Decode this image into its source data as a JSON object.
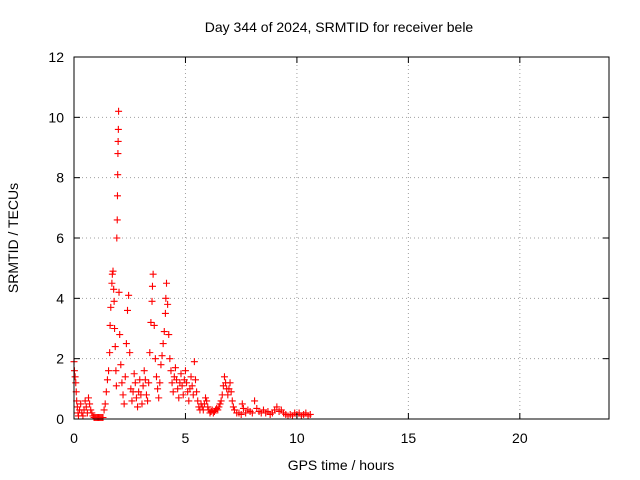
{
  "chart_data": {
    "type": "scatter",
    "title": "Day 344 of 2024, SRMTID for receiver bele",
    "xlabel": "GPS time / hours",
    "ylabel": "SRMTID / TECUs",
    "xlim": [
      0,
      24
    ],
    "ylim": [
      0,
      12
    ],
    "xticks": [
      0,
      5,
      10,
      15,
      20
    ],
    "yticks": [
      0,
      2,
      4,
      6,
      8,
      10,
      12
    ],
    "xtick_labels": [
      "0",
      "5",
      "10",
      "15",
      "20"
    ],
    "ytick_labels": [
      "0",
      "2",
      "4",
      "6",
      "8",
      "10",
      "12"
    ],
    "grid": true,
    "legend": "none",
    "marker": "plus",
    "color": "#ff0000",
    "series": [
      {
        "points": [
          [
            0.0,
            1.9
          ],
          [
            0.02,
            1.6
          ],
          [
            0.05,
            1.4
          ],
          [
            0.08,
            1.2
          ],
          [
            0.1,
            0.9
          ],
          [
            0.12,
            0.6
          ],
          [
            0.15,
            0.4
          ],
          [
            0.18,
            0.2
          ],
          [
            0.2,
            0.1
          ],
          [
            0.25,
            0.3
          ],
          [
            0.3,
            0.5
          ],
          [
            0.35,
            0.2
          ],
          [
            0.4,
            0.1
          ],
          [
            0.45,
            0.3
          ],
          [
            0.5,
            0.6
          ],
          [
            0.55,
            0.4
          ],
          [
            0.6,
            0.2
          ],
          [
            0.65,
            0.7
          ],
          [
            0.7,
            0.5
          ],
          [
            0.75,
            0.3
          ],
          [
            0.8,
            0.2
          ],
          [
            0.85,
            0.1
          ],
          [
            0.9,
            0.05
          ],
          [
            0.95,
            0.05
          ],
          [
            1.0,
            0.05
          ],
          [
            1.05,
            0.05
          ],
          [
            1.1,
            0.05
          ],
          [
            1.15,
            0.05
          ],
          [
            1.2,
            0.05
          ],
          [
            1.25,
            0.05
          ],
          [
            1.3,
            0.05
          ],
          [
            1.35,
            0.3
          ],
          [
            1.4,
            0.5
          ],
          [
            1.45,
            0.9
          ],
          [
            1.5,
            1.3
          ],
          [
            1.55,
            1.6
          ],
          [
            1.6,
            2.2
          ],
          [
            1.62,
            3.1
          ],
          [
            1.65,
            3.7
          ],
          [
            1.7,
            4.5
          ],
          [
            1.72,
            4.8
          ],
          [
            1.75,
            4.9
          ],
          [
            1.78,
            4.3
          ],
          [
            1.8,
            3.9
          ],
          [
            1.82,
            3.0
          ],
          [
            1.85,
            2.4
          ],
          [
            1.88,
            1.6
          ],
          [
            1.9,
            1.1
          ],
          [
            1.92,
            6.0
          ],
          [
            1.94,
            6.6
          ],
          [
            1.95,
            7.4
          ],
          [
            1.96,
            8.1
          ],
          [
            1.97,
            8.8
          ],
          [
            1.98,
            9.2
          ],
          [
            1.99,
            9.6
          ],
          [
            2.0,
            10.2
          ],
          [
            2.02,
            4.2
          ],
          [
            2.05,
            2.8
          ],
          [
            2.1,
            1.8
          ],
          [
            2.15,
            1.2
          ],
          [
            2.2,
            0.8
          ],
          [
            2.25,
            0.5
          ],
          [
            2.3,
            1.4
          ],
          [
            2.35,
            2.5
          ],
          [
            2.4,
            3.6
          ],
          [
            2.45,
            4.1
          ],
          [
            2.5,
            2.2
          ],
          [
            2.55,
            1.0
          ],
          [
            2.6,
            0.6
          ],
          [
            2.65,
            0.9
          ],
          [
            2.7,
            1.5
          ],
          [
            2.75,
            1.2
          ],
          [
            2.8,
            0.7
          ],
          [
            2.85,
            0.4
          ],
          [
            2.9,
            0.9
          ],
          [
            2.95,
            1.3
          ],
          [
            3.0,
            0.8
          ],
          [
            3.05,
            0.5
          ],
          [
            3.1,
            1.1
          ],
          [
            3.15,
            1.6
          ],
          [
            3.2,
            1.3
          ],
          [
            3.25,
            0.8
          ],
          [
            3.3,
            0.6
          ],
          [
            3.35,
            1.2
          ],
          [
            3.4,
            2.2
          ],
          [
            3.45,
            3.2
          ],
          [
            3.5,
            3.9
          ],
          [
            3.52,
            4.4
          ],
          [
            3.55,
            4.8
          ],
          [
            3.6,
            3.1
          ],
          [
            3.65,
            2.0
          ],
          [
            3.7,
            1.4
          ],
          [
            3.75,
            1.0
          ],
          [
            3.8,
            0.7
          ],
          [
            3.85,
            1.2
          ],
          [
            3.9,
            1.8
          ],
          [
            3.95,
            2.1
          ],
          [
            4.0,
            2.5
          ],
          [
            4.05,
            2.9
          ],
          [
            4.1,
            3.5
          ],
          [
            4.12,
            4.0
          ],
          [
            4.15,
            4.5
          ],
          [
            4.2,
            3.8
          ],
          [
            4.25,
            2.8
          ],
          [
            4.3,
            2.0
          ],
          [
            4.35,
            1.6
          ],
          [
            4.4,
            1.2
          ],
          [
            4.45,
            0.9
          ],
          [
            4.5,
            1.4
          ],
          [
            4.55,
            1.7
          ],
          [
            4.6,
            1.3
          ],
          [
            4.65,
            1.0
          ],
          [
            4.7,
            0.7
          ],
          [
            4.75,
            1.2
          ],
          [
            4.8,
            1.5
          ],
          [
            4.85,
            1.1
          ],
          [
            4.9,
            0.8
          ],
          [
            4.95,
            1.3
          ],
          [
            5.0,
            1.6
          ],
          [
            5.05,
            1.2
          ],
          [
            5.1,
            0.9
          ],
          [
            5.15,
            0.6
          ],
          [
            5.2,
            1.0
          ],
          [
            5.25,
            1.4
          ],
          [
            5.3,
            1.1
          ],
          [
            5.35,
            0.8
          ],
          [
            5.4,
            1.9
          ],
          [
            5.45,
            1.3
          ],
          [
            5.5,
            0.9
          ],
          [
            5.55,
            0.6
          ],
          [
            5.6,
            0.4
          ],
          [
            5.65,
            0.3
          ],
          [
            5.7,
            0.5
          ],
          [
            5.75,
            0.4
          ],
          [
            5.8,
            0.3
          ],
          [
            5.85,
            0.5
          ],
          [
            5.9,
            0.7
          ],
          [
            5.95,
            0.6
          ],
          [
            6.0,
            0.4
          ],
          [
            6.05,
            0.3
          ],
          [
            6.1,
            0.2
          ],
          [
            6.15,
            0.25
          ],
          [
            6.2,
            0.3
          ],
          [
            6.25,
            0.2
          ],
          [
            6.3,
            0.25
          ],
          [
            6.35,
            0.3
          ],
          [
            6.4,
            0.35
          ],
          [
            6.45,
            0.3
          ],
          [
            6.5,
            0.4
          ],
          [
            6.55,
            0.5
          ],
          [
            6.6,
            0.6
          ],
          [
            6.65,
            0.8
          ],
          [
            6.7,
            1.1
          ],
          [
            6.75,
            1.4
          ],
          [
            6.8,
            1.2
          ],
          [
            6.85,
            1.0
          ],
          [
            6.9,
            0.8
          ],
          [
            6.95,
            1.0
          ],
          [
            7.0,
            1.2
          ],
          [
            7.05,
            0.9
          ],
          [
            7.1,
            0.6
          ],
          [
            7.15,
            0.4
          ],
          [
            7.2,
            0.3
          ],
          [
            7.3,
            0.2
          ],
          [
            7.4,
            0.2
          ],
          [
            7.5,
            0.15
          ],
          [
            7.55,
            0.5
          ],
          [
            7.6,
            0.35
          ],
          [
            7.7,
            0.2
          ],
          [
            7.8,
            0.3
          ],
          [
            7.9,
            0.25
          ],
          [
            8.0,
            0.2
          ],
          [
            8.1,
            0.6
          ],
          [
            8.2,
            0.35
          ],
          [
            8.3,
            0.25
          ],
          [
            8.4,
            0.2
          ],
          [
            8.5,
            0.3
          ],
          [
            8.6,
            0.2
          ],
          [
            8.7,
            0.25
          ],
          [
            8.8,
            0.15
          ],
          [
            8.9,
            0.2
          ],
          [
            9.0,
            0.3
          ],
          [
            9.1,
            0.4
          ],
          [
            9.2,
            0.25
          ],
          [
            9.3,
            0.3
          ],
          [
            9.4,
            0.2
          ],
          [
            9.5,
            0.15
          ],
          [
            9.6,
            0.1
          ],
          [
            9.7,
            0.15
          ],
          [
            9.8,
            0.1
          ],
          [
            9.9,
            0.2
          ],
          [
            10.0,
            0.15
          ],
          [
            10.1,
            0.2
          ],
          [
            10.2,
            0.1
          ],
          [
            10.3,
            0.15
          ],
          [
            10.4,
            0.2
          ],
          [
            10.5,
            0.1
          ],
          [
            10.6,
            0.15
          ]
        ]
      }
    ]
  }
}
